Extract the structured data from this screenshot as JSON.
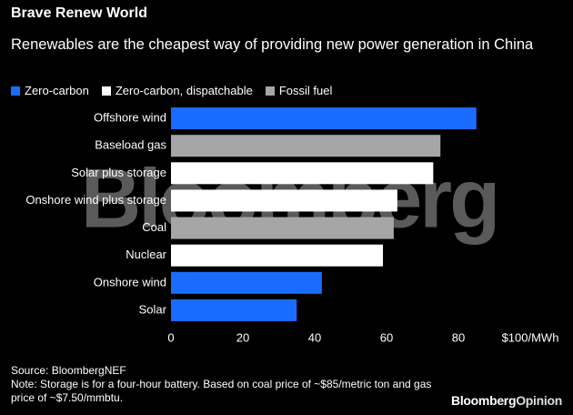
{
  "chart_data": {
    "type": "bar",
    "orientation": "horizontal",
    "title": "Brave Renew World",
    "subtitle": "Renewables are the cheapest way of providing new power generation in China",
    "categories": [
      "Offshore wind",
      "Baseload gas",
      "Solar plus storage",
      "Onshore wind plus storage",
      "Coal",
      "Nuclear",
      "Onshore wind",
      "Solar"
    ],
    "series": [
      {
        "name": "Zero-carbon",
        "color": "#1a6cff",
        "values": [
          85,
          null,
          null,
          null,
          null,
          null,
          42,
          35
        ]
      },
      {
        "name": "Zero-carbon, dispatchable",
        "color": "#ffffff",
        "values": [
          null,
          null,
          73,
          63,
          null,
          59,
          null,
          null
        ]
      },
      {
        "name": "Fossil fuel",
        "color": "#a6a6a6",
        "values": [
          null,
          75,
          null,
          null,
          62,
          null,
          null,
          null
        ]
      }
    ],
    "xlim": [
      0,
      100
    ],
    "xticks": [
      0,
      20,
      40,
      60,
      80,
      {
        "value": 100,
        "label": "$100/MWh"
      }
    ],
    "grid": false,
    "watermark": "Bloomberg",
    "source": "Source: BloombergNEF",
    "note": "Note: Storage is for a four-hour battery. Based on coal price of ~$85/metric ton and gas price of ~$7.50/mmbtu.",
    "logo": {
      "main": "Bloomberg",
      "accent": "Opinion"
    }
  }
}
